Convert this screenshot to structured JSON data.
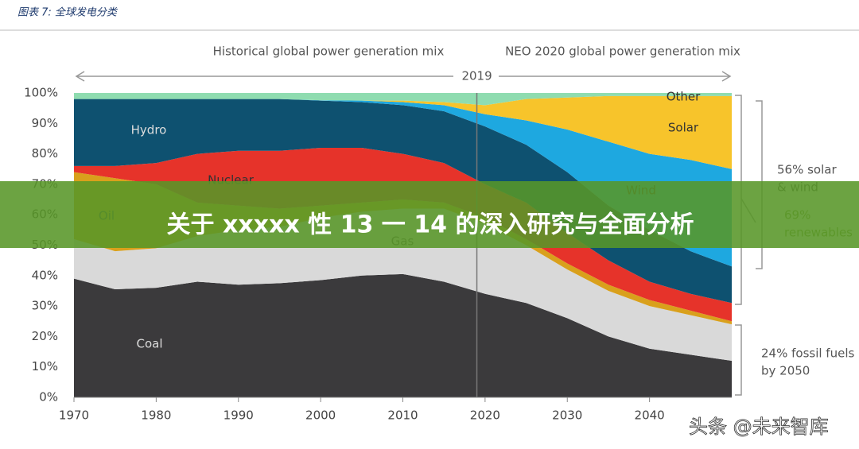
{
  "caption": "图表 7: 全球发电分类",
  "banner": "关于 xxxxx 性 13 一 14 的深入研究与全面分析",
  "watermark": "头条 @未来智库",
  "chart_data": {
    "type": "stacked-area",
    "headings": [
      "Historical global power generation mix",
      "NEO 2020 global power generation mix"
    ],
    "divider": {
      "x": 2019
    },
    "x": [
      1970,
      1975,
      1980,
      1985,
      1990,
      1995,
      2000,
      2005,
      2010,
      2015,
      2020,
      2025,
      2030,
      2035,
      2040,
      2045,
      2050
    ],
    "series": [
      {
        "name": "Coal",
        "color": "#3b3a3c",
        "values": [
          39,
          35.5,
          36,
          38,
          37,
          37.5,
          38.5,
          40,
          40.5,
          38,
          34,
          31,
          26,
          20,
          16,
          14,
          12
        ]
      },
      {
        "name": "Gas",
        "color": "#d9d9d9",
        "values": [
          13,
          12.5,
          13,
          15,
          18,
          18.5,
          20.5,
          21,
          21.5,
          24,
          23,
          19,
          16,
          15,
          14,
          13,
          12
        ]
      },
      {
        "name": "Oil",
        "color": "#d9a01c",
        "values": [
          22,
          24,
          21,
          11,
          8,
          6,
          4,
          3,
          3,
          2,
          2,
          2,
          2,
          2,
          2,
          1.5,
          1
        ]
      },
      {
        "name": "Nuclear",
        "color": "#e6332a",
        "values": [
          2,
          4,
          7,
          16,
          18,
          19,
          19,
          18,
          15,
          13,
          11,
          12,
          10,
          8,
          6,
          5.5,
          6
        ]
      },
      {
        "name": "Hydro",
        "color": "#0e5170",
        "values": [
          22,
          22,
          21,
          18,
          17,
          17,
          15.5,
          15,
          16,
          17,
          19,
          19,
          20,
          18,
          17,
          14,
          12
        ]
      },
      {
        "name": "Wind",
        "color": "#1ea8e0",
        "values": [
          0,
          0,
          0,
          0,
          0,
          0,
          0.1,
          0.5,
          1,
          2,
          4,
          8,
          14,
          21,
          25,
          30,
          32
        ]
      },
      {
        "name": "Solar",
        "color": "#f7c42b",
        "values": [
          0,
          0,
          0,
          0,
          0,
          0,
          0,
          0,
          0.5,
          1,
          3,
          7,
          10.5,
          15,
          19,
          21,
          24
        ]
      },
      {
        "name": "Other",
        "color": "#8fdcb0",
        "values": [
          2,
          2,
          2,
          2,
          2,
          2,
          2.4,
          2.5,
          2.5,
          3,
          4,
          2,
          1.5,
          1,
          1,
          1,
          1
        ]
      }
    ],
    "xlim": [
      1970,
      2050
    ],
    "xticks": [
      1970,
      1980,
      1990,
      2000,
      2010,
      2020,
      2030,
      2040
    ],
    "ylim": [
      0,
      100
    ],
    "yticks": [
      {
        "value": 0,
        "label": "0%"
      },
      {
        "value": 10,
        "label": "10%"
      },
      {
        "value": 20,
        "label": "20%"
      },
      {
        "value": 30,
        "label": "30%"
      },
      {
        "value": 40,
        "label": "40%"
      },
      {
        "value": 50,
        "label": "50%"
      },
      {
        "value": 60,
        "label": "60%"
      },
      {
        "value": 70,
        "label": "70%"
      },
      {
        "value": 80,
        "label": "80%"
      },
      {
        "value": 90,
        "label": "90%"
      },
      {
        "value": 100,
        "label": "100%"
      }
    ],
    "annotations": [
      {
        "lines": [
          "56% solar",
          "& wind"
        ]
      },
      {
        "lines": [
          "69%",
          "renewables"
        ]
      },
      {
        "lines": [
          "24% fossil fuels",
          "by 2050"
        ]
      }
    ]
  }
}
